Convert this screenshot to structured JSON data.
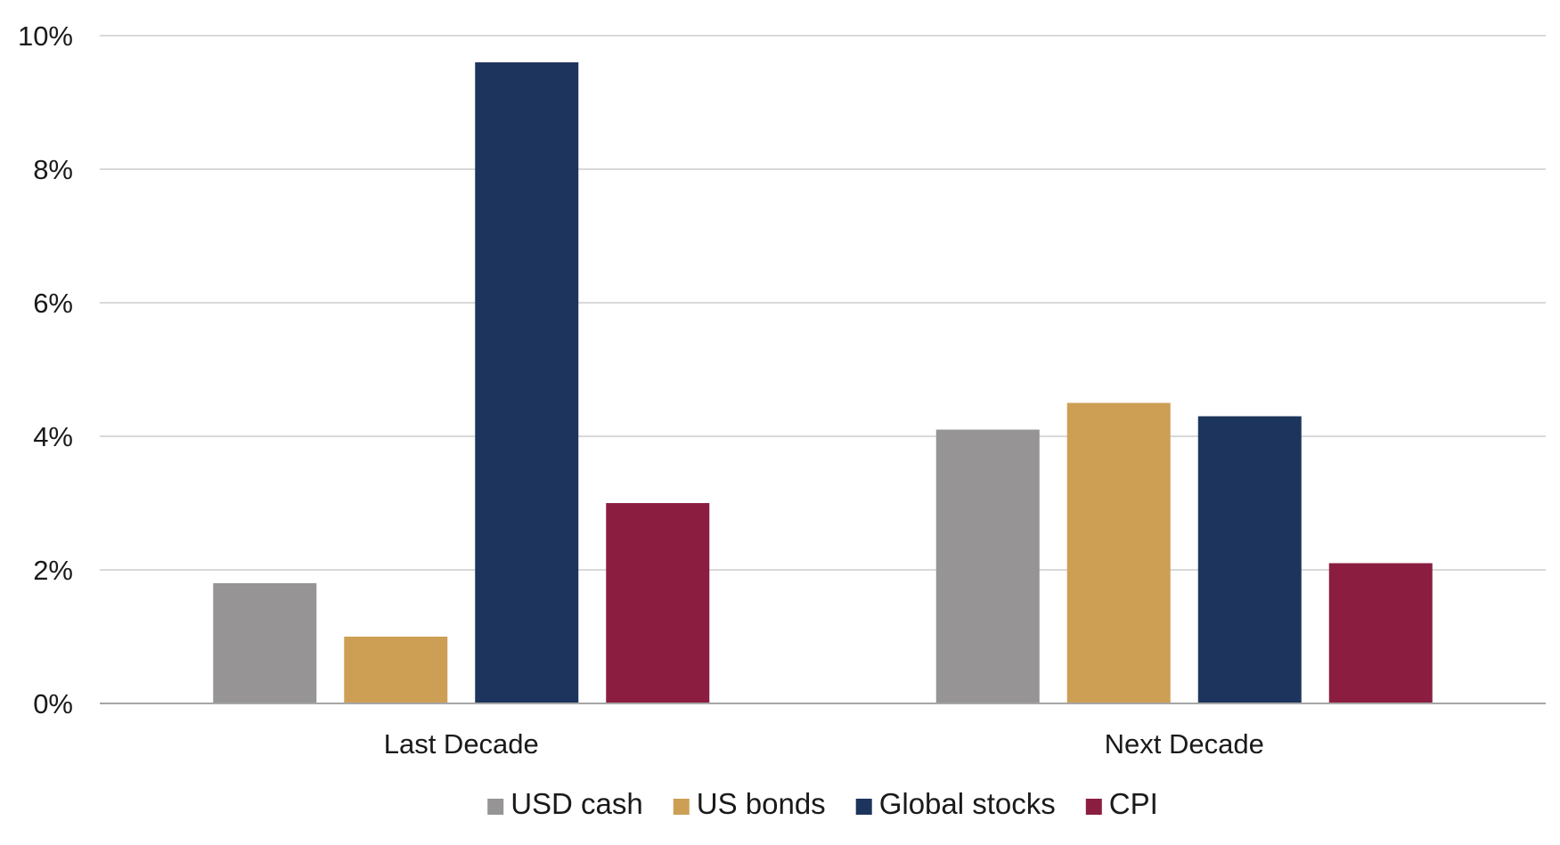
{
  "chart_data": {
    "type": "bar",
    "categories": [
      "Last Decade",
      "Next Decade"
    ],
    "series": [
      {
        "name": "USD cash",
        "values": [
          1.8,
          4.1
        ],
        "color": "#969494"
      },
      {
        "name": "US bonds",
        "values": [
          1.0,
          4.5
        ],
        "color": "#CC9F55"
      },
      {
        "name": "Global stocks",
        "values": [
          9.6,
          4.3
        ],
        "color": "#1D355C"
      },
      {
        "name": "CPI",
        "values": [
          3.0,
          2.1
        ],
        "color": "#8B1E40"
      }
    ],
    "title": "",
    "xlabel": "",
    "ylabel": "",
    "ylim": [
      0,
      10
    ],
    "y_ticks": [
      0,
      2,
      4,
      6,
      8,
      10
    ],
    "y_tick_labels": [
      "0%",
      "2%",
      "4%",
      "6%",
      "8%",
      "10%"
    ],
    "grid": true,
    "legend_position": "bottom"
  }
}
